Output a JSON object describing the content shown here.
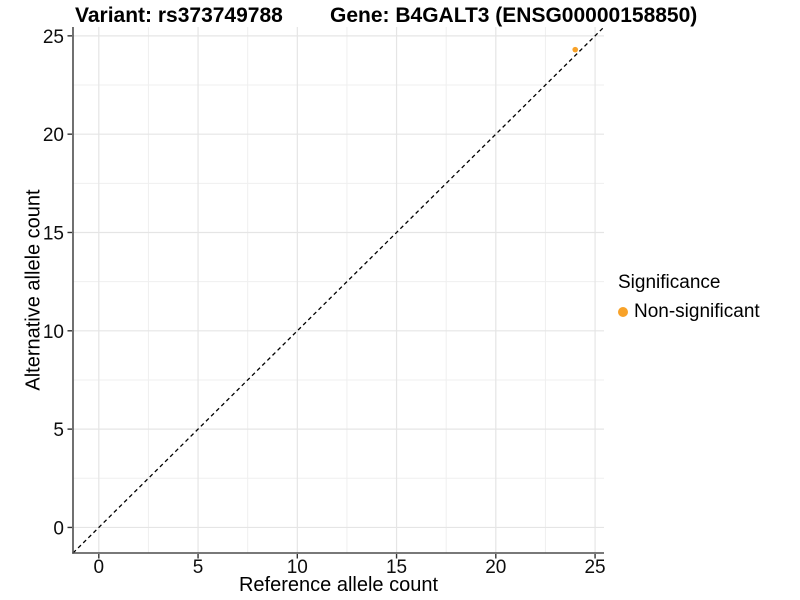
{
  "titles": {
    "variant": "Variant: rs373749788",
    "gene": "Gene: B4GALT3 (ENSG00000158850)"
  },
  "legend": {
    "title": "Significance",
    "items": [
      {
        "label": "Non-significant",
        "color": "#F8A229",
        "shape": "circle"
      }
    ]
  },
  "colors": {
    "point_orange": "#F8A229",
    "grid_major": "#E5E5E5",
    "grid_minor": "#EFEFEF",
    "axis_line": "#4D4D4D",
    "tick_mark": "#333333",
    "reference_line": "#000000",
    "text": "#000000"
  },
  "chart_data": {
    "type": "scatter",
    "title_left": "Variant: rs373749788",
    "title_right": "Gene: B4GALT3 (ENSG00000158850)",
    "xlabel": "Reference allele count",
    "ylabel": "Alternative allele count",
    "xlim": [
      -1.3,
      25.45
    ],
    "ylim": [
      -1.3,
      25.45
    ],
    "x_ticks": [
      0,
      5,
      10,
      15,
      20,
      25
    ],
    "y_ticks": [
      0,
      5,
      10,
      15,
      20,
      25
    ],
    "x_minor_ticks": [
      2.5,
      7.5,
      12.5,
      17.5,
      22.5
    ],
    "y_minor_ticks": [
      2.5,
      7.5,
      12.5,
      17.5,
      22.5
    ],
    "grid": "on",
    "legend_position": "right",
    "legend_title": "Significance",
    "reference_line": {
      "type": "identity",
      "slope": 1,
      "intercept": 0,
      "style": "dashed"
    },
    "series": [
      {
        "name": "Non-significant",
        "color": "#F8A229",
        "points": [
          {
            "x": 24,
            "y": 24.3
          }
        ]
      }
    ]
  }
}
